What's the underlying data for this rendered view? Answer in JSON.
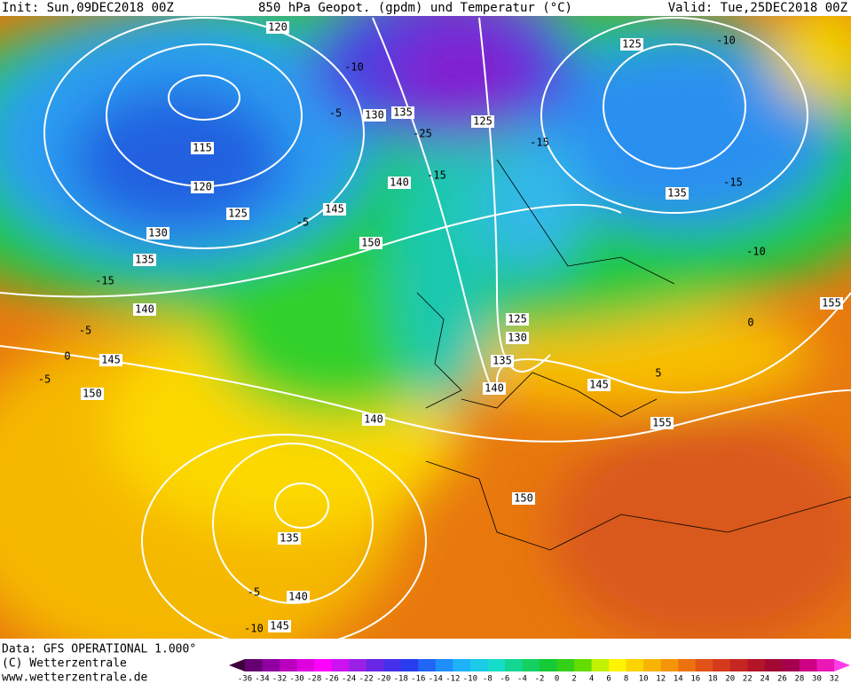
{
  "header": {
    "init": "Init: Sun,09DEC2018 00Z",
    "title": "850 hPa Geopot. (gpdm) und Temperatur (°C)",
    "valid": "Valid: Tue,25DEC2018 00Z"
  },
  "height_labels": [
    120,
    125,
    130,
    135,
    125,
    115,
    120,
    140,
    125,
    145,
    130,
    150,
    135,
    135,
    140,
    125,
    130,
    155,
    145,
    135,
    150,
    140,
    145,
    140,
    155,
    150,
    135,
    140,
    145
  ],
  "temperature_labels": [
    -10,
    -10,
    -5,
    -25,
    -15,
    -15,
    -15,
    -5,
    -15,
    -10,
    -5,
    0,
    -5,
    0,
    5,
    -5,
    -10
  ],
  "footer": {
    "data": "Data: GFS OPERATIONAL 1.000°",
    "copyright": "(C) Wetterzentrale",
    "url": "www.wetterzentrale.de"
  },
  "colorbar": {
    "ticks": [
      -36,
      -34,
      -32,
      -30,
      -28,
      -26,
      -24,
      -22,
      -20,
      -18,
      -16,
      -14,
      -12,
      -10,
      -8,
      -6,
      -4,
      -2,
      0,
      2,
      4,
      6,
      8,
      10,
      12,
      14,
      16,
      18,
      20,
      22,
      24,
      26,
      28,
      30,
      32
    ]
  }
}
